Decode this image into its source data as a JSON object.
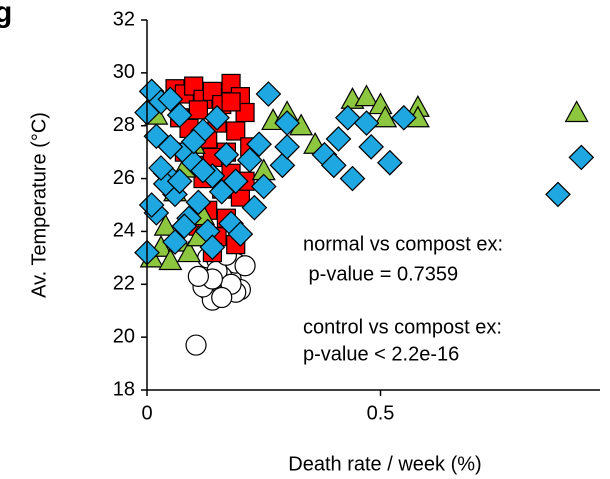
{
  "panel_label": "g",
  "chart_data": {
    "type": "scatter",
    "x_label": "Death rate / week (%)",
    "y_label": "Av. Temperature (°C)",
    "xlim": [
      0,
      0.97
    ],
    "ylim": [
      18,
      32
    ],
    "xticks": [
      0,
      0.5
    ],
    "yticks": [
      18,
      20,
      22,
      24,
      26,
      28,
      30,
      32
    ],
    "annotations": [
      "normal vs compost ex:",
      " p-value = 0.7359",
      "control vs compost ex:",
      "p-value < 2.2e-16"
    ],
    "series": [
      {
        "marker": "circle",
        "color": "#ffffff",
        "x": [
          0.105,
          0.12,
          0.13,
          0.14,
          0.15,
          0.16,
          0.17,
          0.18,
          0.19,
          0.2,
          0.13,
          0.15,
          0.17,
          0.14,
          0.16,
          0.19,
          0.12,
          0.15,
          0.18,
          0.14,
          0.16,
          0.21,
          0.11,
          0.17
        ],
        "y": [
          19.7,
          22.1,
          21.8,
          22.4,
          22.0,
          21.6,
          22.6,
          22.2,
          22.8,
          21.8,
          23.0,
          22.9,
          21.9,
          21.4,
          22.3,
          21.7,
          21.9,
          22.5,
          22.0,
          22.2,
          21.5,
          22.7,
          22.3,
          23.1
        ]
      },
      {
        "marker": "square",
        "color": "#ff0000",
        "x": [
          0.06,
          0.08,
          0.1,
          0.12,
          0.14,
          0.16,
          0.18,
          0.2,
          0.21,
          0.07,
          0.09,
          0.11,
          0.13,
          0.15,
          0.17,
          0.19,
          0.22,
          0.1,
          0.12,
          0.14,
          0.16,
          0.18,
          0.2,
          0.08,
          0.13,
          0.17,
          0.21,
          0.15,
          0.11,
          0.19,
          0.14,
          0.18
        ],
        "y": [
          29.4,
          29.2,
          29.5,
          29.0,
          29.3,
          28.8,
          29.6,
          29.1,
          28.5,
          28.3,
          27.9,
          28.6,
          27.5,
          28.1,
          27.0,
          27.8,
          27.2,
          26.5,
          26.0,
          26.8,
          25.6,
          26.2,
          25.3,
          27.0,
          24.8,
          24.5,
          25.9,
          23.8,
          24.2,
          23.5,
          23.2,
          28.9
        ]
      },
      {
        "marker": "triangle",
        "color": "#8dc63f",
        "x": [
          0.01,
          0.03,
          0.05,
          0.07,
          0.09,
          0.11,
          0.04,
          0.06,
          0.08,
          0.1,
          0.12,
          0.25,
          0.27,
          0.3,
          0.33,
          0.36,
          0.44,
          0.47,
          0.5,
          0.51,
          0.58,
          0.58,
          0.92,
          0.02
        ],
        "y": [
          23.0,
          23.4,
          22.9,
          23.6,
          23.2,
          23.8,
          24.2,
          25.5,
          26.4,
          27.3,
          24.6,
          26.3,
          28.2,
          28.5,
          28.0,
          27.3,
          29.0,
          29.1,
          28.8,
          28.3,
          28.7,
          28.3,
          28.5,
          28.4
        ]
      },
      {
        "marker": "diamond",
        "color": "#1ea7e1",
        "x": [
          0.0,
          0.01,
          0.02,
          0.03,
          0.04,
          0.05,
          0.06,
          0.07,
          0.08,
          0.09,
          0.1,
          0.11,
          0.12,
          0.13,
          0.14,
          0.15,
          0.16,
          0.17,
          0.18,
          0.19,
          0.2,
          0.22,
          0.23,
          0.24,
          0.0,
          0.02,
          0.04,
          0.06,
          0.08,
          0.1,
          0.12,
          0.03,
          0.05,
          0.26,
          0.3,
          0.29,
          0.3,
          0.38,
          0.4,
          0.41,
          0.44,
          0.43,
          0.47,
          0.48,
          0.52,
          0.55,
          0.88,
          0.93,
          0.25,
          0.01,
          0.07,
          0.14
        ],
        "y": [
          28.5,
          29.3,
          27.6,
          28.9,
          26.2,
          29.0,
          25.4,
          28.4,
          27.0,
          24.5,
          26.6,
          25.1,
          27.8,
          24.0,
          26.1,
          28.3,
          25.5,
          26.9,
          24.3,
          25.9,
          23.9,
          26.7,
          24.9,
          27.3,
          23.2,
          24.7,
          25.8,
          23.6,
          24.2,
          27.4,
          26.3,
          26.4,
          27.2,
          29.2,
          28.1,
          26.5,
          27.2,
          26.9,
          26.5,
          27.5,
          26.0,
          28.3,
          28.1,
          27.2,
          26.6,
          28.3,
          25.4,
          26.8,
          25.7,
          25.0,
          25.9,
          23.4
        ]
      }
    ]
  }
}
